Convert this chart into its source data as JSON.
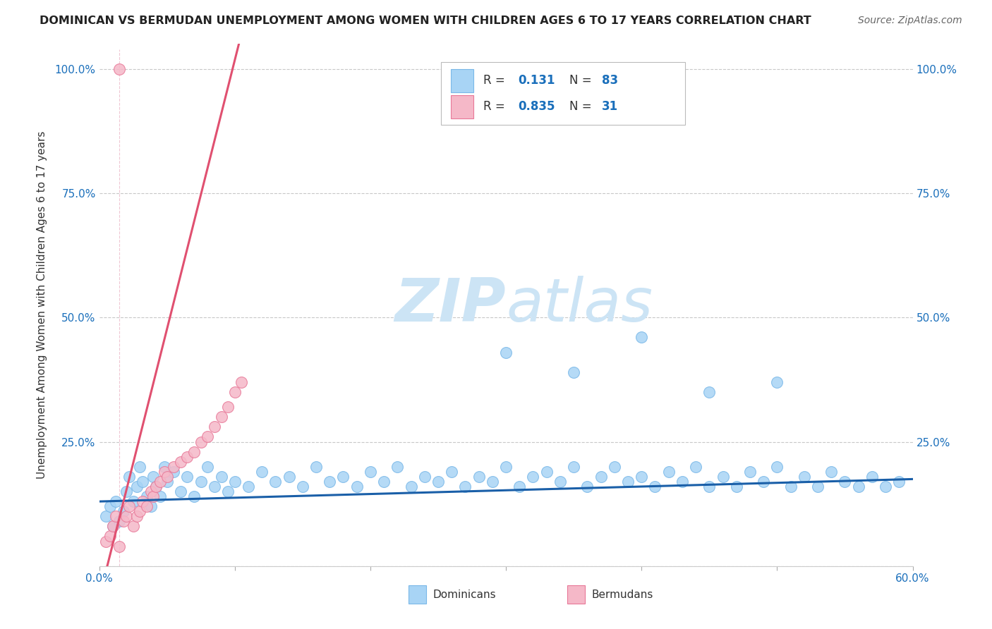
{
  "title": "DOMINICAN VS BERMUDAN UNEMPLOYMENT AMONG WOMEN WITH CHILDREN AGES 6 TO 17 YEARS CORRELATION CHART",
  "source": "Source: ZipAtlas.com",
  "ylabel": "Unemployment Among Women with Children Ages 6 to 17 years",
  "xlim": [
    0.0,
    0.6
  ],
  "ylim": [
    0.0,
    1.05
  ],
  "grid_color": "#c8c8c8",
  "background_color": "#ffffff",
  "dominican_color": "#a8d4f5",
  "dominican_edge_color": "#7ab8e8",
  "bermudan_color": "#f5b8c8",
  "bermudan_edge_color": "#e87898",
  "blue_line_color": "#1a5fa8",
  "pink_line_color": "#e05070",
  "R_dominican": 0.131,
  "N_dominican": 83,
  "R_bermudan": 0.835,
  "N_bermudan": 31,
  "tick_color": "#1a6fbb",
  "watermark_color": "#cce4f5",
  "dominican_x": [
    0.005,
    0.008,
    0.01,
    0.012,
    0.015,
    0.018,
    0.02,
    0.022,
    0.025,
    0.028,
    0.03,
    0.032,
    0.035,
    0.038,
    0.04,
    0.042,
    0.045,
    0.048,
    0.05,
    0.055,
    0.06,
    0.065,
    0.07,
    0.075,
    0.08,
    0.085,
    0.09,
    0.095,
    0.1,
    0.11,
    0.12,
    0.13,
    0.14,
    0.15,
    0.16,
    0.17,
    0.18,
    0.19,
    0.2,
    0.21,
    0.22,
    0.23,
    0.24,
    0.25,
    0.26,
    0.27,
    0.28,
    0.29,
    0.3,
    0.31,
    0.32,
    0.33,
    0.34,
    0.35,
    0.36,
    0.37,
    0.38,
    0.39,
    0.4,
    0.41,
    0.42,
    0.43,
    0.44,
    0.45,
    0.46,
    0.47,
    0.48,
    0.49,
    0.5,
    0.51,
    0.52,
    0.53,
    0.54,
    0.55,
    0.56,
    0.57,
    0.58,
    0.59,
    0.3,
    0.35,
    0.4,
    0.45,
    0.5
  ],
  "dominican_y": [
    0.1,
    0.12,
    0.08,
    0.13,
    0.09,
    0.11,
    0.15,
    0.18,
    0.13,
    0.16,
    0.2,
    0.17,
    0.14,
    0.12,
    0.18,
    0.16,
    0.14,
    0.2,
    0.17,
    0.19,
    0.15,
    0.18,
    0.14,
    0.17,
    0.2,
    0.16,
    0.18,
    0.15,
    0.17,
    0.16,
    0.19,
    0.17,
    0.18,
    0.16,
    0.2,
    0.17,
    0.18,
    0.16,
    0.19,
    0.17,
    0.2,
    0.16,
    0.18,
    0.17,
    0.19,
    0.16,
    0.18,
    0.17,
    0.2,
    0.16,
    0.18,
    0.19,
    0.17,
    0.2,
    0.16,
    0.18,
    0.2,
    0.17,
    0.18,
    0.16,
    0.19,
    0.17,
    0.2,
    0.16,
    0.18,
    0.16,
    0.19,
    0.17,
    0.2,
    0.16,
    0.18,
    0.16,
    0.19,
    0.17,
    0.16,
    0.18,
    0.16,
    0.17,
    0.43,
    0.39,
    0.46,
    0.35,
    0.37
  ],
  "bermudan_x": [
    0.005,
    0.008,
    0.01,
    0.012,
    0.015,
    0.018,
    0.02,
    0.022,
    0.025,
    0.028,
    0.03,
    0.032,
    0.035,
    0.038,
    0.04,
    0.042,
    0.045,
    0.048,
    0.05,
    0.055,
    0.06,
    0.065,
    0.07,
    0.075,
    0.08,
    0.085,
    0.09,
    0.095,
    0.1,
    0.105,
    0.015
  ],
  "bermudan_y": [
    0.05,
    0.06,
    0.08,
    0.1,
    0.04,
    0.09,
    0.1,
    0.12,
    0.08,
    0.1,
    0.11,
    0.13,
    0.12,
    0.15,
    0.14,
    0.16,
    0.17,
    0.19,
    0.18,
    0.2,
    0.21,
    0.22,
    0.23,
    0.25,
    0.26,
    0.28,
    0.3,
    0.32,
    0.35,
    0.37,
    1.0
  ],
  "dom_line_x": [
    0.0,
    0.6
  ],
  "dom_line_y": [
    0.13,
    0.175
  ],
  "berm_line_x0": 0.0,
  "berm_line_x1": 0.103,
  "berm_line_slope": 11.0,
  "berm_line_intercept": -0.065
}
